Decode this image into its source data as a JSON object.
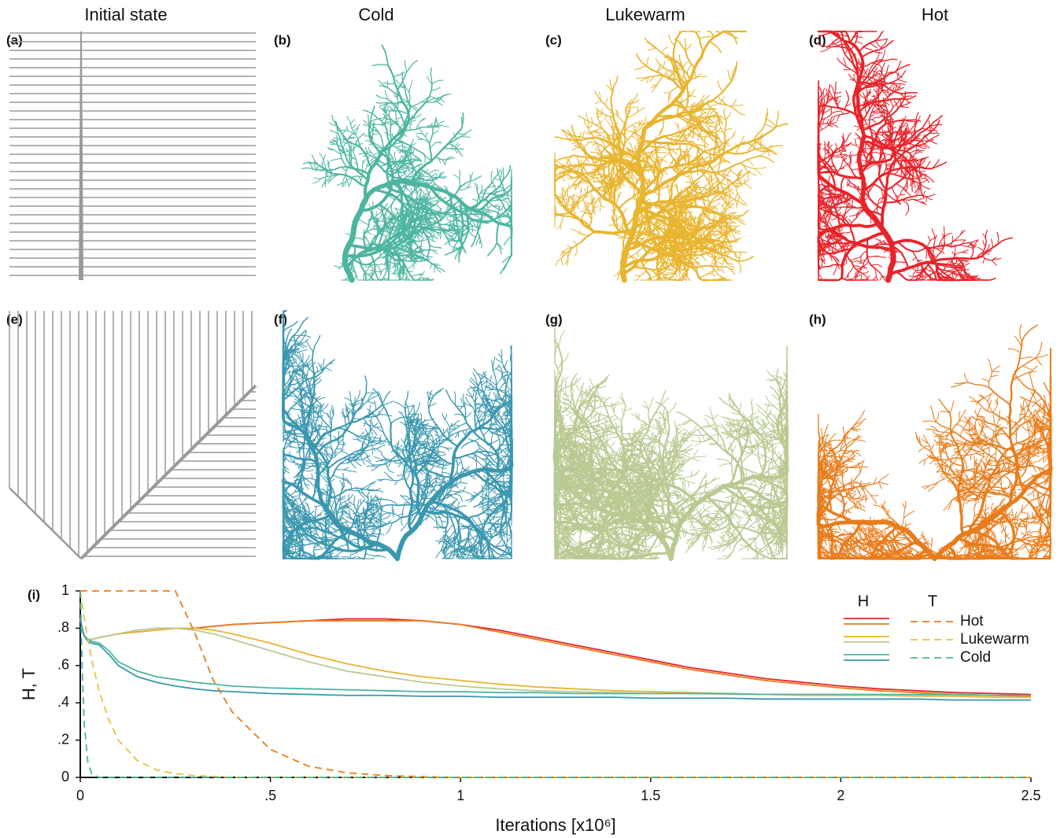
{
  "panels": [
    {
      "label": "(a)",
      "title": "Initial state",
      "shape": "parallel"
    },
    {
      "label": "(b)",
      "title": "Cold",
      "color": "#4db5a0"
    },
    {
      "label": "(c)",
      "title": "Lukewarm",
      "color": "#e8b530"
    },
    {
      "label": "(d)",
      "title": "Hot",
      "color": "#e8232a"
    },
    {
      "label": "(e)",
      "shape": "v"
    },
    {
      "label": "(f)",
      "color": "#3a97ae"
    },
    {
      "label": "(g)",
      "color": "#b9c992"
    },
    {
      "label": "(h)",
      "color": "#e87c1c"
    }
  ],
  "chart_data": {
    "type": "line",
    "panel_label": "(i)",
    "xlabel": "Iterations [x10⁶]",
    "ylabel": "H, T",
    "legend_headers": [
      "H",
      "T"
    ],
    "x": [
      0,
      0.005,
      0.01,
      0.02,
      0.03,
      0.05,
      0.075,
      0.1,
      0.15,
      0.2,
      0.25,
      0.3,
      0.35,
      0.4,
      0.5,
      0.6,
      0.7,
      0.8,
      0.9,
      1.0,
      1.1,
      1.2,
      1.3,
      1.4,
      1.5,
      1.6,
      1.7,
      1.8,
      1.9,
      2.0,
      2.1,
      2.2,
      2.3,
      2.4,
      2.5
    ],
    "series": [
      {
        "color": "#e8232a",
        "values": [
          0.85,
          0.8,
          0.76,
          0.74,
          0.74,
          0.75,
          0.76,
          0.77,
          0.78,
          0.79,
          0.8,
          0.8,
          0.81,
          0.82,
          0.83,
          0.84,
          0.85,
          0.85,
          0.84,
          0.82,
          0.79,
          0.75,
          0.71,
          0.67,
          0.63,
          0.59,
          0.56,
          0.53,
          0.51,
          0.49,
          0.475,
          0.465,
          0.455,
          0.45,
          0.445
        ]
      },
      {
        "color": "#e87c1c",
        "values": [
          0.85,
          0.8,
          0.76,
          0.74,
          0.74,
          0.75,
          0.76,
          0.77,
          0.78,
          0.79,
          0.8,
          0.8,
          0.81,
          0.82,
          0.83,
          0.84,
          0.84,
          0.84,
          0.84,
          0.82,
          0.78,
          0.74,
          0.7,
          0.66,
          0.62,
          0.58,
          0.55,
          0.52,
          0.5,
          0.48,
          0.465,
          0.455,
          0.445,
          0.44,
          0.435
        ]
      },
      {
        "color": "#e8b530",
        "values": [
          0.85,
          0.8,
          0.76,
          0.74,
          0.74,
          0.75,
          0.76,
          0.77,
          0.78,
          0.79,
          0.8,
          0.8,
          0.79,
          0.77,
          0.72,
          0.66,
          0.61,
          0.57,
          0.54,
          0.52,
          0.5,
          0.485,
          0.475,
          0.465,
          0.46,
          0.455,
          0.45,
          0.445,
          0.44,
          0.44,
          0.44,
          0.435,
          0.435,
          0.43,
          0.43
        ]
      },
      {
        "color": "#b9c992",
        "values": [
          0.85,
          0.8,
          0.76,
          0.74,
          0.74,
          0.75,
          0.76,
          0.77,
          0.79,
          0.8,
          0.8,
          0.79,
          0.77,
          0.74,
          0.68,
          0.62,
          0.57,
          0.54,
          0.51,
          0.49,
          0.475,
          0.465,
          0.46,
          0.455,
          0.45,
          0.45,
          0.445,
          0.445,
          0.44,
          0.44,
          0.44,
          0.44,
          0.44,
          0.44,
          0.44
        ]
      },
      {
        "color": "#4db5a0",
        "values": [
          0.85,
          0.8,
          0.76,
          0.74,
          0.73,
          0.72,
          0.68,
          0.62,
          0.57,
          0.54,
          0.525,
          0.51,
          0.5,
          0.49,
          0.48,
          0.475,
          0.47,
          0.465,
          0.46,
          0.46,
          0.455,
          0.455,
          0.45,
          0.45,
          0.45,
          0.45,
          0.45,
          0.445,
          0.445,
          0.445,
          0.445,
          0.445,
          0.445,
          0.44,
          0.44
        ]
      },
      {
        "color": "#3a97ae",
        "values": [
          0.85,
          0.8,
          0.76,
          0.73,
          0.72,
          0.71,
          0.66,
          0.6,
          0.54,
          0.51,
          0.49,
          0.475,
          0.465,
          0.46,
          0.45,
          0.445,
          0.44,
          0.44,
          0.435,
          0.435,
          0.43,
          0.43,
          0.43,
          0.43,
          0.425,
          0.425,
          0.425,
          0.42,
          0.42,
          0.42,
          0.42,
          0.42,
          0.415,
          0.415,
          0.415
        ]
      },
      {
        "name": "Hot",
        "color": "#e87c1c",
        "style": "dashed",
        "values": [
          1,
          1,
          1,
          1,
          1,
          1,
          1,
          1,
          1,
          1,
          1,
          0.78,
          0.52,
          0.35,
          0.15,
          0.06,
          0.025,
          0.01,
          0.004,
          0,
          0,
          0,
          0,
          0,
          0,
          0,
          0,
          0,
          0,
          0,
          0,
          0,
          0,
          0,
          0
        ]
      },
      {
        "name": "Lukewarm",
        "color": "#e8c040",
        "style": "dashed",
        "values": [
          1,
          0.93,
          0.86,
          0.74,
          0.63,
          0.46,
          0.31,
          0.2,
          0.09,
          0.04,
          0.02,
          0.01,
          0.005,
          0,
          0,
          0,
          0,
          0,
          0,
          0,
          0,
          0,
          0,
          0,
          0,
          0,
          0,
          0,
          0,
          0,
          0,
          0,
          0,
          0,
          0
        ]
      },
      {
        "name": "Cold",
        "color": "#4db5a0",
        "style": "dashed",
        "values": [
          1,
          0.6,
          0.3,
          0.08,
          0.02,
          0,
          0,
          0,
          0,
          0,
          0,
          0,
          0,
          0,
          0,
          0,
          0,
          0,
          0,
          0,
          0,
          0,
          0,
          0,
          0,
          0,
          0,
          0,
          0,
          0,
          0,
          0,
          0,
          0,
          0
        ]
      }
    ],
    "xlim": [
      0,
      2.5
    ],
    "ylim": [
      0,
      1
    ],
    "xticks": [
      0,
      {
        "value": 0.5,
        "label": ".5"
      },
      1,
      1.5,
      2,
      2.5
    ],
    "yticks": [
      0,
      {
        "value": 0.2,
        "label": ".2"
      },
      {
        "value": 0.4,
        "label": ".4"
      },
      {
        "value": 0.6,
        "label": ".6"
      },
      {
        "value": 0.8,
        "label": ".8"
      },
      1
    ]
  }
}
